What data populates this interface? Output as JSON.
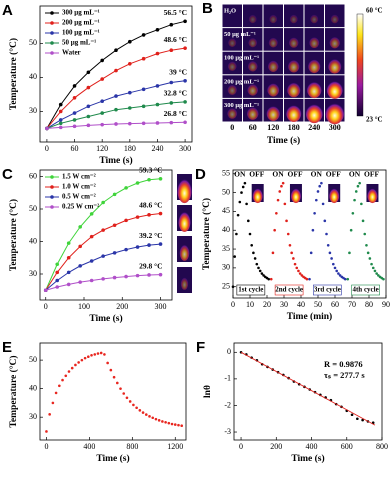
{
  "chart_data": [
    {
      "type": "line",
      "label": "A",
      "xlabel": "Time (s)",
      "ylabel": "Temperature (°C)",
      "xlim": [
        -15,
        315
      ],
      "ylim": [
        21,
        61
      ],
      "xticks": [
        0,
        60,
        120,
        180,
        240,
        300
      ],
      "yticks": [
        30,
        40,
        50
      ],
      "legend": true,
      "series": [
        {
          "name": "300 μg mL⁻¹",
          "color": "#000000",
          "end_label": "56.5 °C",
          "x": [
            0,
            30,
            60,
            90,
            120,
            150,
            180,
            210,
            240,
            270,
            300
          ],
          "values": [
            25,
            32,
            37.5,
            41.5,
            45,
            48,
            50.5,
            52.5,
            54,
            55.5,
            56.5
          ]
        },
        {
          "name": "200 μg mL⁻¹",
          "color": "#e0201b",
          "end_label": "48.6 °C",
          "x": [
            0,
            30,
            60,
            90,
            120,
            150,
            180,
            210,
            240,
            270,
            300
          ],
          "values": [
            25,
            30,
            34,
            37,
            39.5,
            42,
            44,
            45.5,
            47,
            48,
            48.6
          ]
        },
        {
          "name": "100 μg mL⁻¹",
          "color": "#2a35a8",
          "end_label": "39 °C",
          "x": [
            0,
            30,
            60,
            90,
            120,
            150,
            180,
            210,
            240,
            270,
            300
          ],
          "values": [
            25,
            27.5,
            29.5,
            31.5,
            33,
            34.5,
            35.5,
            36.5,
            37.5,
            38.5,
            39
          ]
        },
        {
          "name": "50 μg mL⁻¹",
          "color": "#1f8a4c",
          "end_label": "32.8 °C",
          "x": [
            0,
            30,
            60,
            90,
            120,
            150,
            180,
            210,
            240,
            270,
            300
          ],
          "values": [
            25,
            26.5,
            27.5,
            28.5,
            29.5,
            30.5,
            31,
            31.5,
            32,
            32.5,
            32.8
          ]
        },
        {
          "name": "Water",
          "color": "#b04fc9",
          "end_label": "26.8 °C",
          "x": [
            0,
            30,
            60,
            90,
            120,
            150,
            180,
            210,
            240,
            270,
            300
          ],
          "values": [
            25,
            25.3,
            25.6,
            25.9,
            26.1,
            26.3,
            26.4,
            26.5,
            26.6,
            26.7,
            26.8
          ]
        }
      ]
    },
    {
      "type": "thermal",
      "label": "B",
      "xlabel": "Time (s)",
      "categories": [
        "0",
        "60",
        "120",
        "180",
        "240",
        "300"
      ],
      "rows": [
        "H₂O",
        "50 μg mL⁻¹",
        "100 μg mL⁻¹",
        "200 μg mL⁻¹",
        "300 μg mL⁻¹"
      ],
      "colorbar": [
        "60 °C",
        "23 °C"
      ]
    },
    {
      "type": "line",
      "label": "C",
      "xlabel": "Time (s)",
      "ylabel": "Temperature (°C)",
      "xlim": [
        -15,
        330
      ],
      "ylim": [
        22,
        62
      ],
      "xticks": [
        0,
        100,
        200,
        300
      ],
      "yticks": [
        30,
        40,
        50,
        60
      ],
      "legend": true,
      "series": [
        {
          "name": "1.5 W cm⁻²",
          "color": "#3fd43a",
          "end_label": "59.3 °C",
          "x": [
            0,
            30,
            60,
            90,
            120,
            150,
            180,
            210,
            240,
            270,
            300
          ],
          "values": [
            25,
            33,
            39.5,
            44.5,
            48.5,
            52,
            54.5,
            56.5,
            58,
            59,
            59.3
          ]
        },
        {
          "name": "1.0 W cm⁻²",
          "color": "#e0201b",
          "end_label": "48.6 °C",
          "x": [
            0,
            30,
            60,
            90,
            120,
            150,
            180,
            210,
            240,
            270,
            300
          ],
          "values": [
            25,
            30.5,
            35,
            38.5,
            41.5,
            43.5,
            45,
            46.5,
            47.5,
            48.2,
            48.6
          ]
        },
        {
          "name": "0.5 W cm⁻²",
          "color": "#2a35a8",
          "end_label": "39.2 °C",
          "x": [
            0,
            30,
            60,
            90,
            120,
            150,
            180,
            210,
            240,
            270,
            300
          ],
          "values": [
            25,
            28,
            30.5,
            32.5,
            34,
            35.5,
            36.5,
            37.5,
            38.3,
            38.9,
            39.2
          ]
        },
        {
          "name": "0.25 W cm⁻²",
          "color": "#b04fc9",
          "end_label": "29.8 °C",
          "x": [
            0,
            30,
            60,
            90,
            120,
            150,
            180,
            210,
            240,
            270,
            300
          ],
          "values": [
            25,
            26,
            26.8,
            27.5,
            28,
            28.5,
            28.9,
            29.2,
            29.5,
            29.7,
            29.8
          ]
        }
      ]
    },
    {
      "type": "cycles",
      "label": "D",
      "xlabel": "Time (min)",
      "ylabel": "Temperature (°C)",
      "xlim": [
        0,
        90
      ],
      "ylim": [
        22,
        56
      ],
      "xticks": [
        0,
        10,
        20,
        30,
        40,
        50,
        60,
        70,
        80,
        90
      ],
      "yticks": [
        25,
        30,
        35,
        40,
        45,
        50,
        55
      ],
      "annotations": [
        "ON",
        "OFF",
        "ON",
        "OFF",
        "ON",
        "OFF",
        "ON",
        "OFF"
      ],
      "series": [
        {
          "name": "1st cycle",
          "color": "#000000",
          "x": [
            0,
            1,
            2,
            3,
            4,
            5,
            6,
            7,
            8,
            9,
            10,
            11,
            12,
            13,
            14,
            15,
            16,
            17,
            18,
            19,
            20,
            21
          ],
          "values": [
            25,
            33,
            39,
            44,
            47.5,
            50,
            51.5,
            52.5,
            47,
            42.5,
            39,
            36,
            34,
            32.5,
            31,
            30,
            29.2,
            28.5,
            28,
            27.6,
            27.3,
            27
          ]
        },
        {
          "name": "2nd cycle",
          "color": "#e0201b",
          "x": [
            22.5,
            23.5,
            24.5,
            25.5,
            26.5,
            27.5,
            28.5,
            29.5,
            30.5,
            31.5,
            32.5,
            33.5,
            34.5,
            35.5,
            36.5,
            37.5,
            38.5,
            39.5,
            40.5,
            41.5,
            42.5,
            43.5
          ],
          "values": [
            27,
            34,
            40,
            44.5,
            48,
            50.3,
            51.7,
            52.5,
            47,
            42.5,
            39,
            36,
            34,
            32.5,
            31,
            30,
            29.2,
            28.5,
            28,
            27.6,
            27.3,
            27
          ]
        },
        {
          "name": "3rd cycle",
          "color": "#2a35a8",
          "x": [
            45,
            46,
            47,
            48,
            49,
            50,
            51,
            52,
            53,
            54,
            55,
            56,
            57,
            58,
            59,
            60,
            61,
            62,
            63,
            64,
            65,
            66
          ],
          "values": [
            27,
            34,
            40,
            44.5,
            48,
            50.3,
            51.7,
            52.5,
            47,
            42.5,
            39,
            36,
            34,
            32.5,
            31,
            30,
            29.2,
            28.5,
            28,
            27.6,
            27.3,
            27
          ]
        },
        {
          "name": "4th cycle",
          "color": "#1f8a4c",
          "x": [
            67.5,
            68.5,
            69.5,
            70.5,
            71.5,
            72.5,
            73.5,
            74.5,
            75.5,
            76.5,
            77.5,
            78.5,
            79.5,
            80.5,
            81.5,
            82.5,
            83.5,
            84.5,
            85.5,
            86.5,
            87.5,
            88.5
          ],
          "values": [
            27,
            34,
            40,
            44.5,
            48,
            50.3,
            51.7,
            52.5,
            47,
            42.5,
            39,
            36,
            34,
            32.5,
            31,
            30,
            29.2,
            28.5,
            28,
            27.6,
            27.3,
            27
          ]
        }
      ]
    },
    {
      "type": "scatter",
      "label": "E",
      "xlabel": "Time (s)",
      "ylabel": "Temperature (°C)",
      "xlim": [
        -60,
        1300
      ],
      "ylim": [
        22,
        56
      ],
      "xticks": [
        0,
        400,
        800,
        1200
      ],
      "yticks": [
        30,
        40,
        50
      ],
      "series": [
        {
          "color": "#e8261f",
          "x": [
            0,
            30,
            60,
            90,
            120,
            150,
            180,
            210,
            240,
            270,
            300,
            330,
            360,
            390,
            420,
            450,
            480,
            510,
            540,
            570,
            600,
            630,
            660,
            690,
            720,
            750,
            780,
            810,
            840,
            870,
            900,
            930,
            960,
            990,
            1020,
            1050,
            1080,
            1110,
            1140,
            1170,
            1200,
            1230,
            1260
          ],
          "values": [
            25,
            31,
            35,
            38.5,
            41,
            43,
            44.5,
            46,
            47.2,
            48.3,
            49.2,
            50,
            50.7,
            51.2,
            51.7,
            52,
            52.3,
            52.5,
            52,
            49,
            46.5,
            44,
            42,
            40,
            38.3,
            36.8,
            35.5,
            34.3,
            33.3,
            32.4,
            31.6,
            30.9,
            30.3,
            29.8,
            29.3,
            28.9,
            28.5,
            28.2,
            27.9,
            27.6,
            27.4,
            27.2,
            27
          ]
        }
      ]
    },
    {
      "type": "scatter",
      "label": "F",
      "xlabel": "Time (s)",
      "ylabel": "lnθ",
      "xlim": [
        -40,
        800
      ],
      "ylim": [
        -3.3,
        0.35
      ],
      "xticks": [
        0,
        200,
        400,
        600,
        800
      ],
      "yticks": [
        0,
        -1,
        -2,
        -3
      ],
      "annotations": [
        "R = 0.9876",
        "τₛ = 277.7 s"
      ],
      "series": [
        {
          "color": "#000000",
          "x": [
            0,
            30,
            60,
            90,
            120,
            150,
            180,
            210,
            240,
            270,
            300,
            330,
            360,
            390,
            420,
            450,
            480,
            510,
            540,
            570,
            600,
            630,
            660,
            690,
            720,
            750
          ],
          "values": [
            0,
            -0.08,
            -0.2,
            -0.3,
            -0.45,
            -0.55,
            -0.65,
            -0.75,
            -0.85,
            -0.97,
            -1.1,
            -1.2,
            -1.3,
            -1.4,
            -1.5,
            -1.6,
            -1.7,
            -1.8,
            -1.95,
            -2.05,
            -2.2,
            -2.35,
            -2.5,
            -2.55,
            -2.6,
            -2.65
          ]
        },
        {
          "color": "#e0201b",
          "line": true,
          "x": [
            0,
            760
          ],
          "values": [
            0,
            -2.74
          ]
        }
      ]
    }
  ]
}
